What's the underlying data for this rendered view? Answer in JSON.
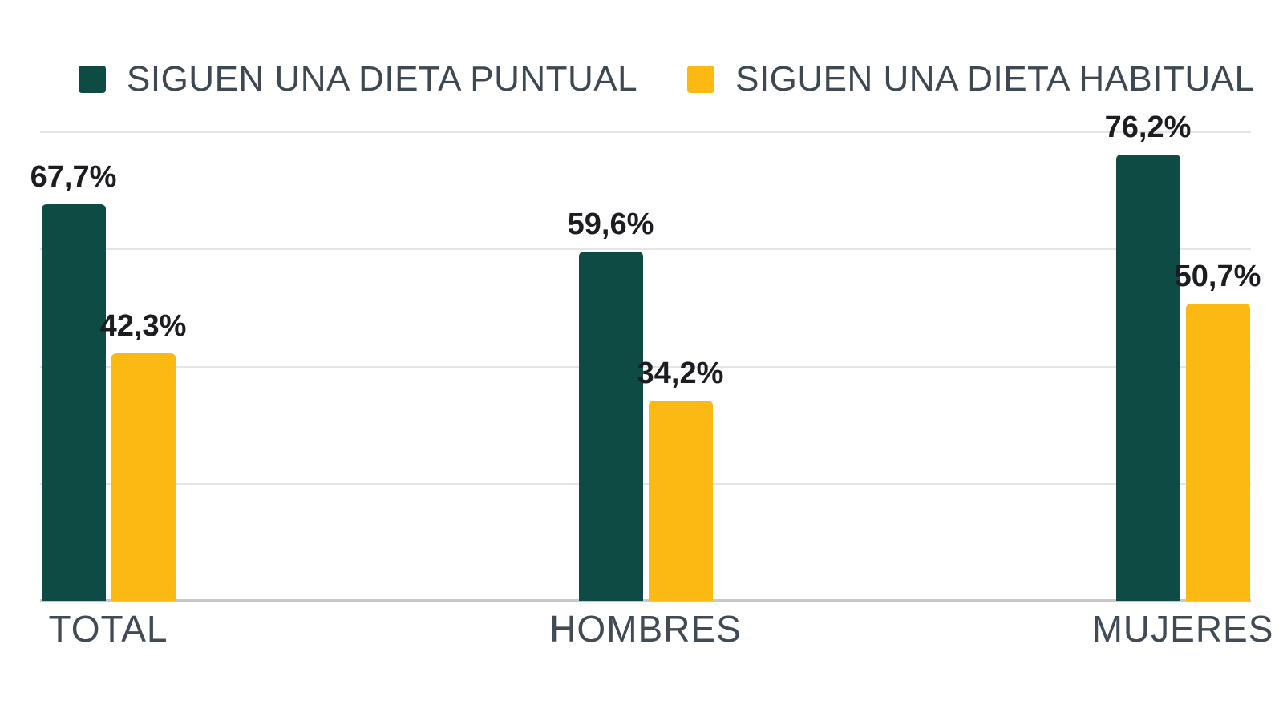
{
  "chart_data": {
    "type": "bar",
    "title": "",
    "xlabel": "",
    "ylabel": "",
    "categories": [
      "TOTAL",
      "HOMBRES",
      "MUJERES"
    ],
    "series": [
      {
        "name": "SIGUEN UNA DIETA PUNTUAL",
        "color": "#0e4b44",
        "values": [
          67.7,
          59.6,
          76.2
        ],
        "value_labels": [
          "67,7%",
          "59,6%",
          "76,2%"
        ]
      },
      {
        "name": "SIGUEN UNA DIETA HABITUAL",
        "color": "#fdb913",
        "values": [
          42.3,
          34.2,
          50.7
        ],
        "value_labels": [
          "42,3%",
          "34,2%",
          "50,7%"
        ]
      }
    ],
    "ylim": [
      0,
      83.4
    ],
    "gridlines": [
      20,
      40,
      60,
      80
    ],
    "grid": "horizontal-only",
    "legend_position": "top",
    "value_label_format": "percent-decimal-comma"
  },
  "colors": {
    "background": "#ffffff",
    "gridline": "#e3e5e7",
    "baseline": "#c5c9cc",
    "value_label": "#1b1d20",
    "category_label": "#414b55",
    "legend_label": "#3e4852"
  }
}
